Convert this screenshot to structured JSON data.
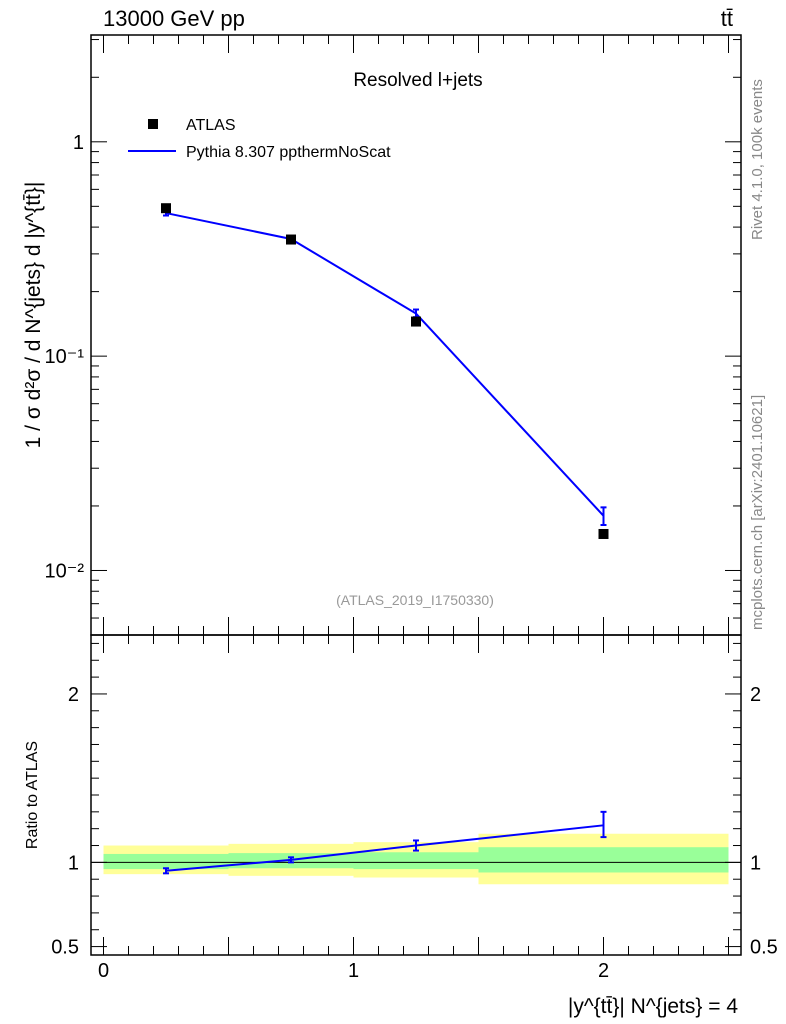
{
  "header": {
    "left_label": "13000 GeV pp",
    "right_label": "tt̄"
  },
  "side_labels": {
    "rivet": "Rivet 4.1.0,  100k events",
    "source": "mcplots.cern.ch [arXiv:2401.10621]"
  },
  "chart_data": [
    {
      "type": "scatter",
      "panel": "main",
      "title": "Resolved l+jets",
      "ylabel": "1 / σ d²σ / d N^{jets} d |y^{tt̄}|",
      "yscale": "log",
      "ylim": [
        0.005,
        3.15
      ],
      "xlim": [
        -0.05,
        2.55
      ],
      "yticks": [
        {
          "value": 1,
          "label": "1"
        },
        {
          "value": 0.1,
          "label": "10⁻¹"
        },
        {
          "value": 0.01,
          "label": "10⁻²"
        }
      ],
      "watermark": "(ATLAS_2019_I1750330)",
      "legend_position": "top-left",
      "series": [
        {
          "name": "ATLAS",
          "style": "markers",
          "color": "#000000",
          "x": [
            0.25,
            0.75,
            1.25,
            2.0
          ],
          "values": [
            0.49,
            0.35,
            0.145,
            0.0148
          ]
        },
        {
          "name": "Pythia 8.307 ppthermNoScat",
          "style": "line",
          "color": "#0000ff",
          "x": [
            0.25,
            0.75,
            1.25,
            2.0
          ],
          "values": [
            0.465,
            0.352,
            0.158,
            0.018
          ],
          "err_low": [
            0.453,
            0.347,
            0.152,
            0.0163
          ],
          "err_high": [
            0.477,
            0.357,
            0.165,
            0.0197
          ]
        }
      ]
    },
    {
      "type": "line",
      "panel": "ratio",
      "ylabel": "Ratio to ATLAS",
      "xlabel": "|y^{tt̄}| N^{jets} = 4",
      "xlim": [
        -0.05,
        2.55
      ],
      "ylim": [
        0.45,
        2.35
      ],
      "xticks": [
        {
          "value": 0,
          "label": "0"
        },
        {
          "value": 1,
          "label": "1"
        },
        {
          "value": 2,
          "label": "2"
        }
      ],
      "yticks": [
        {
          "value": 0.5,
          "label": "0.5"
        },
        {
          "value": 1,
          "label": "1"
        },
        {
          "value": 2,
          "label": "2"
        }
      ],
      "bands": [
        {
          "x_low": 0.0,
          "x_high": 0.5,
          "inner": [
            0.96,
            1.05
          ],
          "outer": [
            0.93,
            1.1
          ]
        },
        {
          "x_low": 0.5,
          "x_high": 1.0,
          "inner": [
            0.965,
            1.055
          ],
          "outer": [
            0.92,
            1.11
          ]
        },
        {
          "x_low": 1.0,
          "x_high": 1.5,
          "inner": [
            0.96,
            1.06
          ],
          "outer": [
            0.91,
            1.12
          ]
        },
        {
          "x_low": 1.5,
          "x_high": 2.5,
          "inner": [
            0.94,
            1.09
          ],
          "outer": [
            0.87,
            1.17
          ]
        }
      ],
      "series": [
        {
          "name": "Pythia 8.307 ppthermNoScat",
          "color": "#0000ff",
          "x": [
            0.25,
            0.75,
            1.25,
            2.0
          ],
          "values": [
            0.95,
            1.015,
            1.1,
            1.22
          ],
          "err_low": [
            0.935,
            1.0,
            1.07,
            1.15
          ],
          "err_high": [
            0.965,
            1.03,
            1.13,
            1.3
          ]
        }
      ]
    }
  ]
}
